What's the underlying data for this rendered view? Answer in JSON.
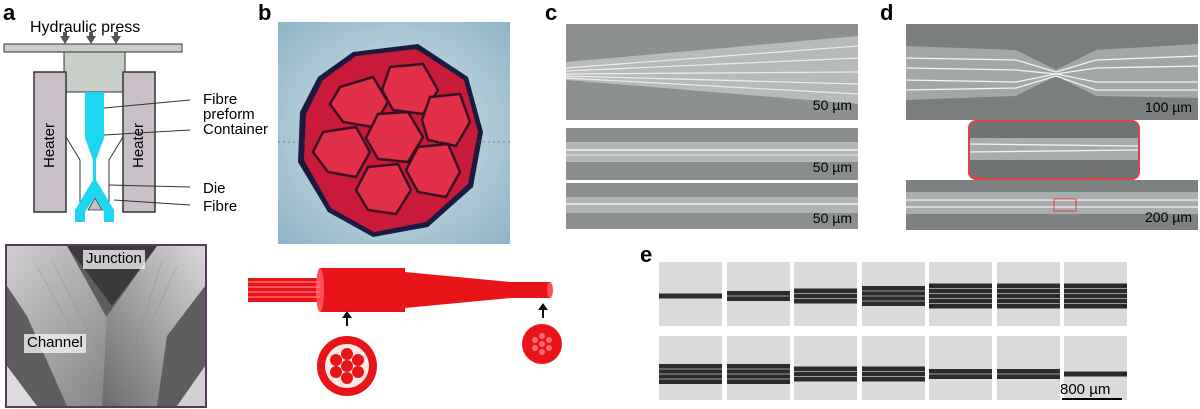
{
  "panels": {
    "a": {
      "letter": "a",
      "title": "Hydraulic press",
      "labels": {
        "fibre_preform": "Fibre\npreform",
        "container": "Container",
        "heater_left": "Heater",
        "heater_right": "Heater",
        "die": "Die",
        "fibre": "Fibre"
      },
      "photo_labels": {
        "junction": "Junction",
        "channel": "Channel"
      }
    },
    "b": {
      "letter": "b"
    },
    "c": {
      "letter": "c",
      "scale_bars": [
        "50 µm",
        "50 µm",
        "50 µm"
      ]
    },
    "d": {
      "letter": "d",
      "scale_bars": [
        "100 µm",
        "200 µm"
      ]
    },
    "e": {
      "letter": "e",
      "scale_bar": "800 µm"
    }
  },
  "colors": {
    "fibre": "#1ed6f0",
    "heater": "#c9bfc6",
    "press": "#c8cec8",
    "red": "#e8141a",
    "zoom_frame": "#d44"
  }
}
